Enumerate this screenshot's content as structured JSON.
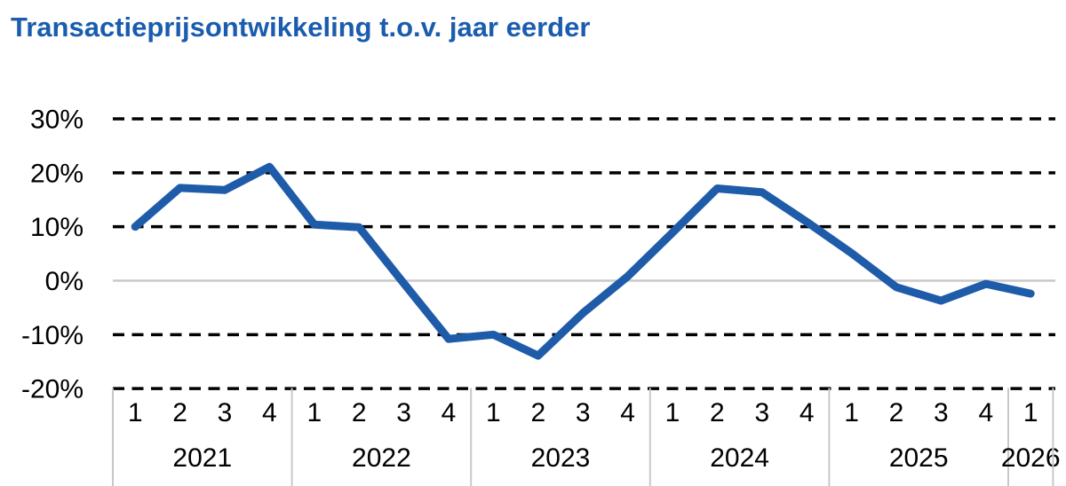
{
  "title": "Transactieprijsontwikkeling t.o.v. jaar eerder",
  "chart_data": {
    "type": "line",
    "title": "Transactieprijsontwikkeling t.o.v. jaar eerder",
    "xlabel": "",
    "ylabel": "",
    "legend": "none",
    "grid": "horizontal dashed black lines at 30,20,10,-10,-20; solid light gray line at 0",
    "ylim": [
      -22,
      33
    ],
    "y_ticks": [
      {
        "value": 30,
        "label": "30%"
      },
      {
        "value": 20,
        "label": "20%"
      },
      {
        "value": 10,
        "label": "10%"
      },
      {
        "value": 0,
        "label": "0%"
      },
      {
        "value": -10,
        "label": "-10%"
      },
      {
        "value": -20,
        "label": "-20%"
      }
    ],
    "x_groups": [
      {
        "year": "2021",
        "quarters": [
          "1",
          "2",
          "3",
          "4"
        ]
      },
      {
        "year": "2022",
        "quarters": [
          "1",
          "2",
          "3",
          "4"
        ]
      },
      {
        "year": "2023",
        "quarters": [
          "1",
          "2",
          "3",
          "4"
        ]
      },
      {
        "year": "2024",
        "quarters": [
          "1",
          "2",
          "3",
          "4"
        ]
      },
      {
        "year": "2025",
        "quarters": [
          "1",
          "2",
          "3",
          "4"
        ]
      },
      {
        "year": "2026",
        "quarters": [
          "1"
        ]
      }
    ],
    "series": [
      {
        "name": "Transactieprijsontwikkeling t.o.v. jaar eerder (%)",
        "values": [
          10.0,
          17.2,
          16.8,
          21.1,
          10.4,
          9.9,
          -0.5,
          -10.8,
          -10.0,
          -13.9,
          -6.0,
          0.8,
          8.9,
          17.1,
          16.4,
          10.9,
          5.1,
          -1.2,
          -3.7,
          -0.6,
          -2.4
        ]
      }
    ],
    "colors": {
      "line": "#1E5BA9",
      "title": "#1A5CAD",
      "grid_dash": "#000000",
      "zero_line": "#C8C8C8",
      "divider": "#C8C8C8",
      "tick_text": "#000000"
    }
  }
}
